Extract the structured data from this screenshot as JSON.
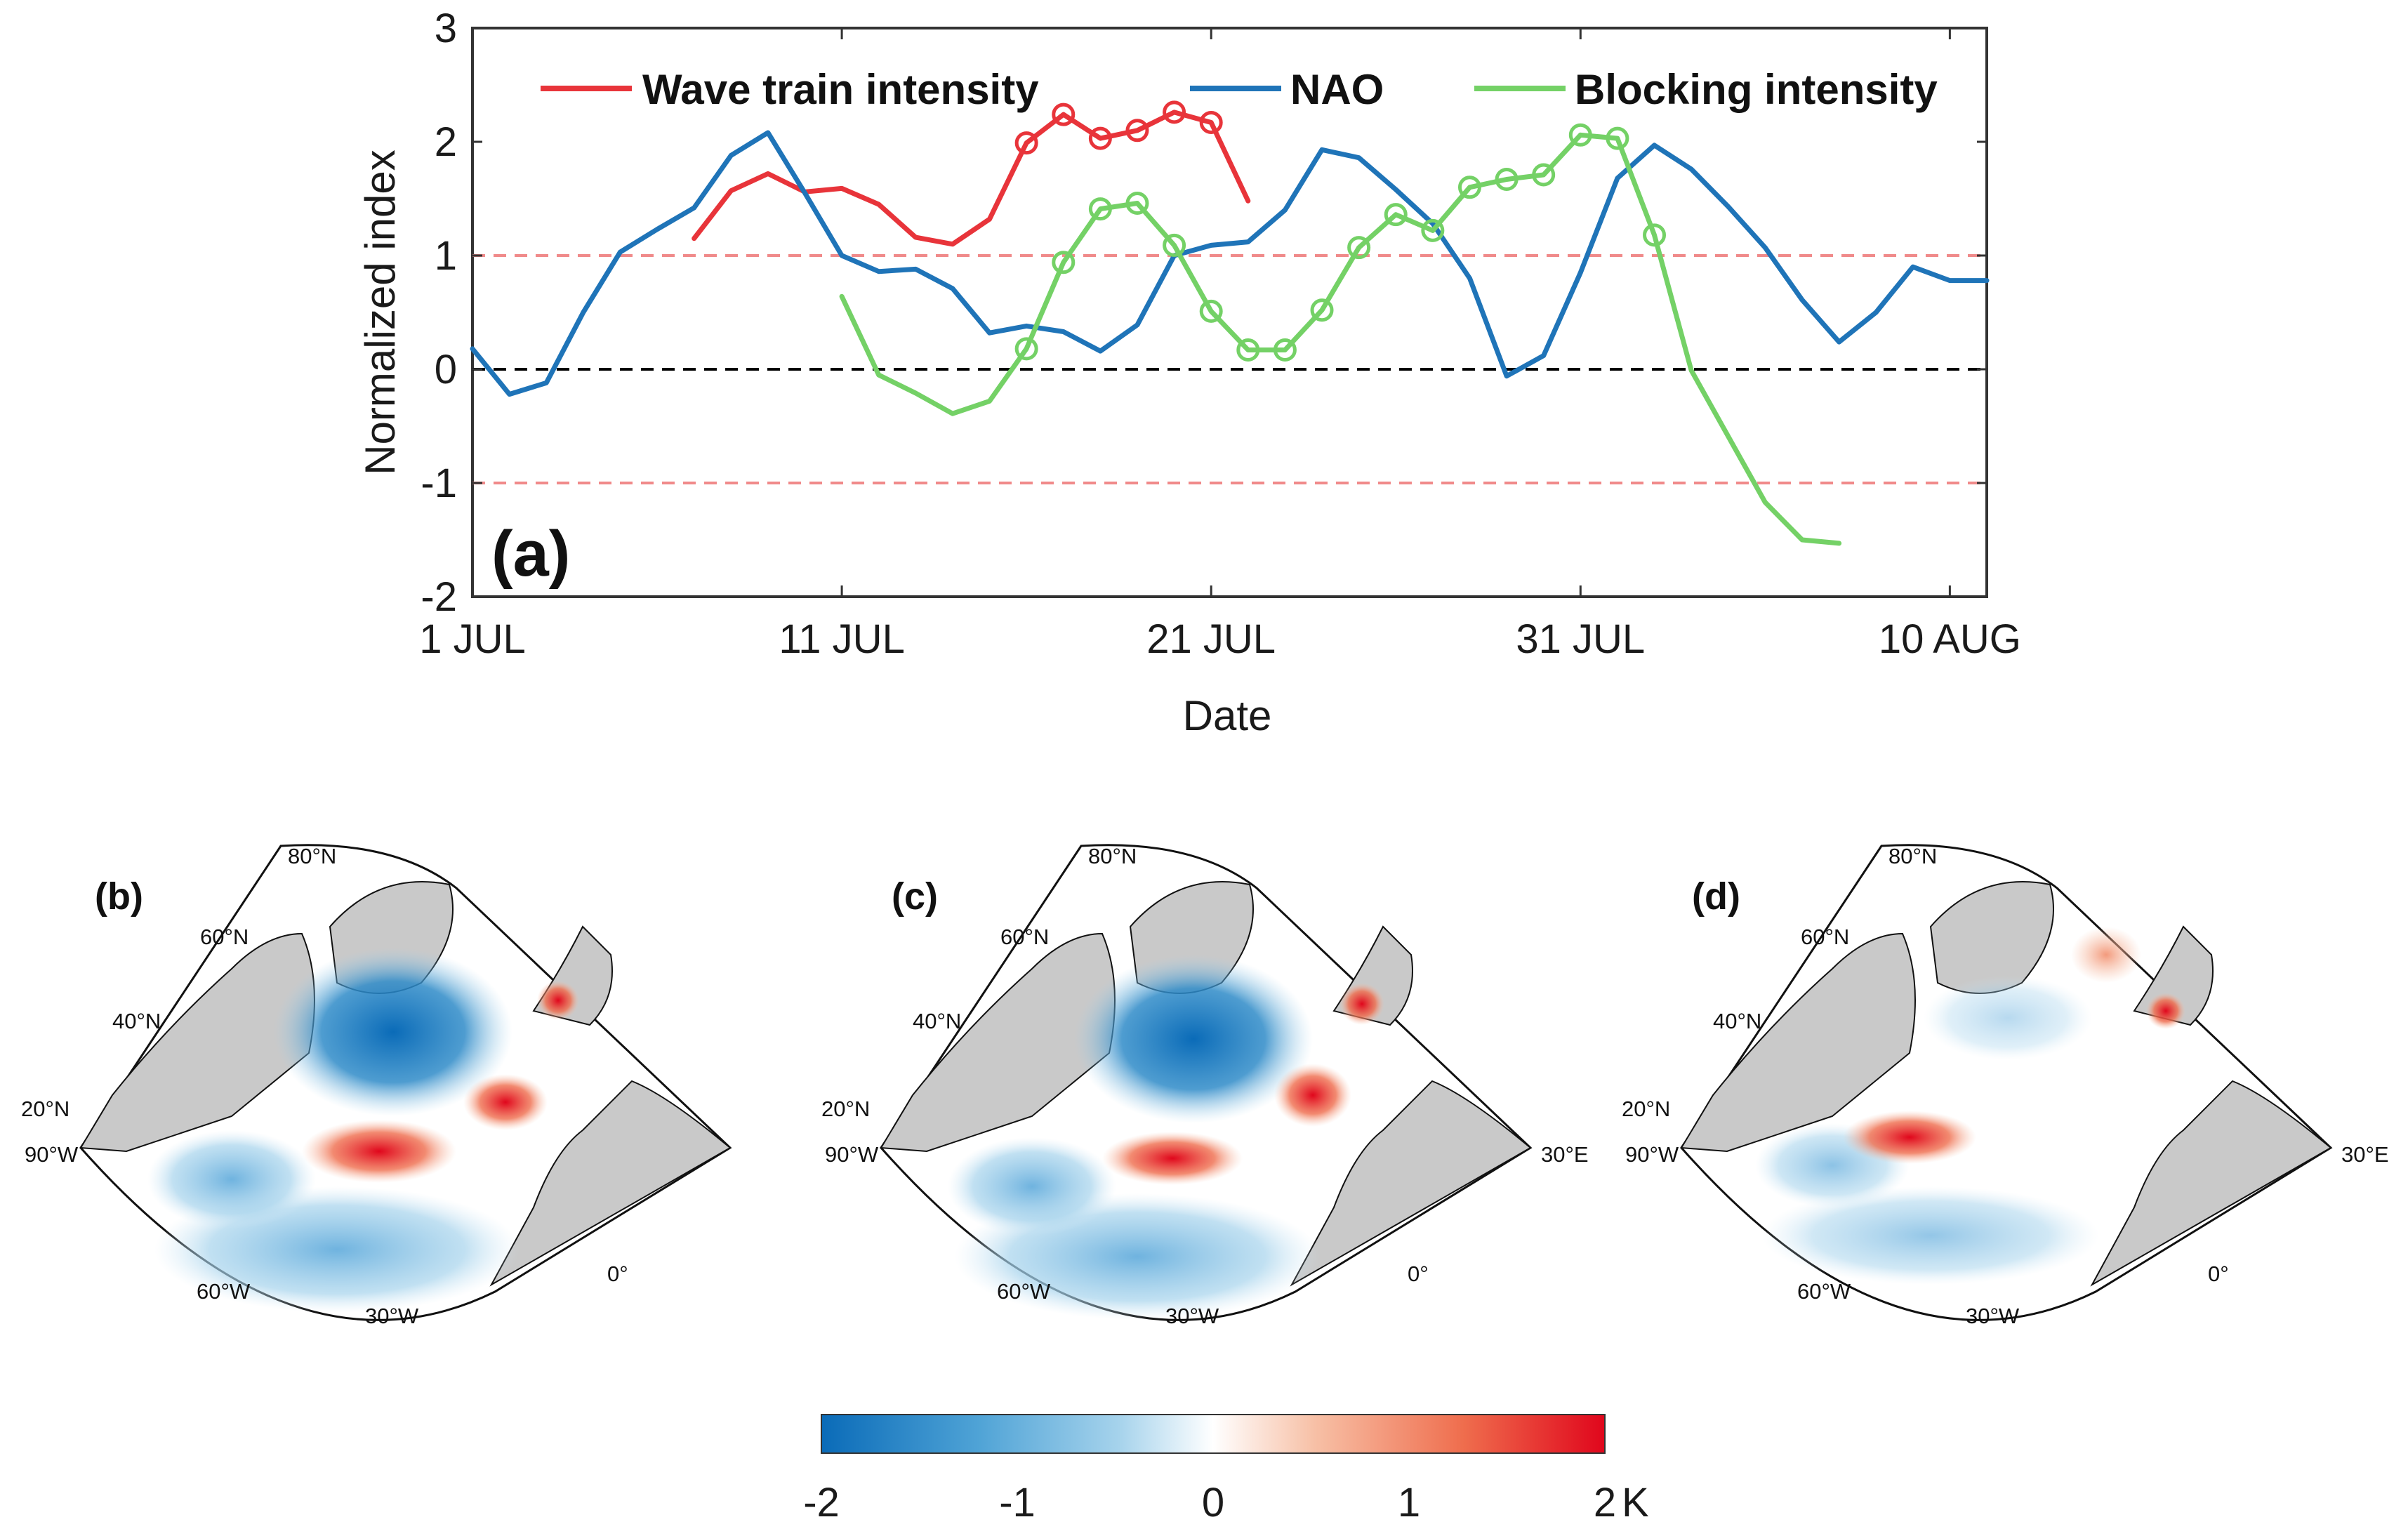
{
  "chart_data": [
    {
      "type": "line",
      "panel_label": "(a)",
      "xlabel": "Date",
      "ylabel": "Normalized index",
      "xlim": [
        1,
        42
      ],
      "ylim": [
        -2,
        3
      ],
      "x_ticks": [
        {
          "day": 1,
          "label": "1 JUL"
        },
        {
          "day": 11,
          "label": "11 JUL"
        },
        {
          "day": 21,
          "label": "21 JUL"
        },
        {
          "day": 31,
          "label": "31 JUL"
        },
        {
          "day": 41,
          "label": "10 AUG"
        }
      ],
      "y_ticks": [
        -2,
        -1,
        0,
        1,
        2,
        3
      ],
      "reference_lines": [
        {
          "y": 1,
          "color": "#f08a8a",
          "style": "dashed"
        },
        {
          "y": 0,
          "color": "#000000",
          "style": "dashed"
        },
        {
          "y": -1,
          "color": "#f08a8a",
          "style": "dashed"
        }
      ],
      "legend": [
        {
          "name": "Wave train intensity",
          "color": "#e8343a"
        },
        {
          "name": "NAO",
          "color": "#1f74b8"
        },
        {
          "name": "Blocking intensity",
          "color": "#74d166"
        }
      ],
      "series": [
        {
          "name": "Wave train intensity",
          "color": "#e8343a",
          "x": [
            7,
            8,
            9,
            10,
            11,
            12,
            13,
            14,
            15,
            16,
            17,
            18,
            19,
            20,
            21,
            22
          ],
          "values": [
            1.15,
            1.57,
            1.72,
            1.56,
            1.59,
            1.45,
            1.16,
            1.1,
            1.32,
            1.99,
            2.24,
            2.03,
            2.1,
            2.26,
            2.17,
            1.48
          ],
          "markers_x": [
            16,
            17,
            18,
            19,
            20,
            21
          ]
        },
        {
          "name": "NAO",
          "color": "#1f74b8",
          "x": [
            1,
            2,
            3,
            4,
            5,
            6,
            7,
            8,
            9,
            10,
            11,
            12,
            13,
            14,
            15,
            16,
            17,
            18,
            19,
            20,
            21,
            22,
            23,
            24,
            25,
            26,
            27,
            28,
            29,
            30,
            31,
            32,
            33,
            34,
            35,
            36,
            37,
            38,
            39,
            40,
            41,
            42
          ],
          "values": [
            0.18,
            -0.22,
            -0.12,
            0.5,
            1.03,
            1.23,
            1.42,
            1.88,
            2.08,
            1.55,
            1.0,
            0.86,
            0.88,
            0.71,
            0.32,
            0.38,
            0.33,
            0.16,
            0.39,
            1.0,
            1.09,
            1.12,
            1.4,
            1.93,
            1.86,
            1.58,
            1.28,
            0.8,
            -0.06,
            0.12,
            0.85,
            1.68,
            1.97,
            1.76,
            1.43,
            1.07,
            0.61,
            0.24,
            0.5,
            0.9,
            0.78,
            0.78
          ]
        },
        {
          "name": "Blocking intensity",
          "color": "#74d166",
          "x": [
            11,
            12,
            13,
            14,
            15,
            16,
            17,
            18,
            19,
            20,
            21,
            22,
            23,
            24,
            25,
            26,
            27,
            28,
            29,
            30,
            31,
            32,
            33,
            34,
            35,
            36,
            37,
            38
          ],
          "values": [
            0.64,
            -0.05,
            -0.21,
            -0.39,
            -0.28,
            0.18,
            0.94,
            1.41,
            1.46,
            1.09,
            0.51,
            0.17,
            0.17,
            0.52,
            1.07,
            1.36,
            1.22,
            1.6,
            1.67,
            1.71,
            2.06,
            2.03,
            1.18,
            -0.01,
            -0.59,
            -1.17,
            -1.5,
            -1.53
          ],
          "markers_x": [
            16,
            17,
            18,
            19,
            20,
            21,
            22,
            23,
            24,
            25,
            26,
            27,
            28,
            29,
            30,
            31,
            32,
            33
          ]
        }
      ]
    },
    {
      "type": "heatmap",
      "panels": [
        {
          "label": "(b)"
        },
        {
          "label": "(c)"
        },
        {
          "label": "(d)"
        }
      ],
      "lat_labels": [
        "80°N",
        "60°N",
        "40°N",
        "20°N"
      ],
      "lon_labels": [
        "90°W",
        "60°W",
        "30°W",
        "0°",
        "30°E"
      ],
      "colorbar": {
        "range": [
          -2,
          2
        ],
        "ticks": [
          "-2",
          "-1",
          "0",
          "1",
          "2"
        ],
        "unit": "K",
        "colors": [
          "#0a6bb8",
          "#4fa3d6",
          "#a6d3ec",
          "#ffffff",
          "#f7c0a6",
          "#ef6d4d",
          "#e0061c"
        ]
      }
    }
  ]
}
